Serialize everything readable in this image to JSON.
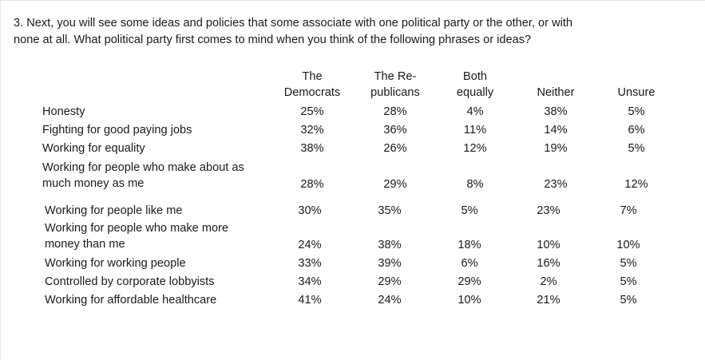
{
  "question": {
    "line1": "3. Next, you will see some ideas and policies that some associate with one political party or the other, or with",
    "line2": "none at all. What political party first comes to mind when you think of the following phrases or ideas?"
  },
  "table": {
    "headers": [
      {
        "line1": "The",
        "line2": "Democrats"
      },
      {
        "line1": "The Re-",
        "line2": "publicans"
      },
      {
        "line1": "Both",
        "line2": "equally"
      },
      {
        "line1": "",
        "line2": "Neither"
      },
      {
        "line1": "",
        "line2": "Unsure"
      }
    ],
    "rows": [
      {
        "label1": "Honesty",
        "label2": "",
        "values": [
          "25%",
          "28%",
          "4%",
          "38%",
          "5%"
        ]
      },
      {
        "label1": "Fighting for good paying jobs",
        "label2": "",
        "values": [
          "32%",
          "36%",
          "11%",
          "14%",
          "6%"
        ]
      },
      {
        "label1": "Working for equality",
        "label2": "",
        "values": [
          "38%",
          "26%",
          "12%",
          "19%",
          "5%"
        ]
      },
      {
        "label1": "Working for people who make about as",
        "label2": "much money as me",
        "values": [
          "28%",
          "29%",
          "8%",
          "23%",
          "12%"
        ]
      },
      {
        "label1": "Working for people like me",
        "label2": "",
        "values": [
          "30%",
          "35%",
          "5%",
          "23%",
          "7%"
        ]
      },
      {
        "label1": "Working for people who make more",
        "label2": "money than me",
        "values": [
          "24%",
          "38%",
          "18%",
          "10%",
          "10%"
        ]
      },
      {
        "label1": "Working for working people",
        "label2": "",
        "values": [
          "33%",
          "39%",
          "6%",
          "16%",
          "5%"
        ]
      },
      {
        "label1": "Controlled by corporate lobbyists",
        "label2": "",
        "values": [
          "34%",
          "29%",
          "29%",
          "2%",
          "5%"
        ]
      },
      {
        "label1": "Working for affordable healthcare",
        "label2": "",
        "values": [
          "41%",
          "24%",
          "10%",
          "21%",
          "5%"
        ]
      }
    ]
  }
}
